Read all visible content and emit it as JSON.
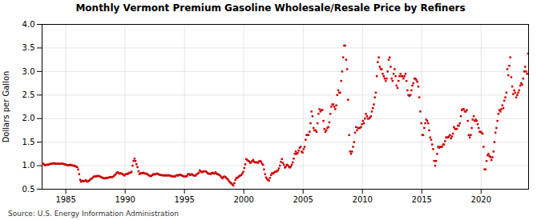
{
  "chart_data": {
    "type": "scatter",
    "title": "Monthly Vermont Premium Gasoline Wholesale/Resale Price by Refiners",
    "ylabel": "Dollars per Gallon",
    "annotations": [
      "Source: U.S. Energy Information Administration"
    ],
    "color": "#cc0000",
    "marker": "square",
    "grid": true,
    "xlim": [
      1983.0,
      2024.0
    ],
    "xticks": [
      1985,
      1990,
      1995,
      2000,
      2005,
      2010,
      2015,
      2020
    ],
    "ylim": [
      0.5,
      4.0
    ],
    "yticks": [
      0.5,
      {
        "value": 1.0,
        "label": "1.0"
      },
      1.5,
      {
        "value": 2.0,
        "label": "2.0"
      },
      2.5,
      {
        "value": 3.0,
        "label": "3.0"
      },
      3.5,
      {
        "value": 4.0,
        "label": "4.0"
      }
    ],
    "x": [
      1983.041667,
      1983.125,
      1983.208333,
      1983.291667,
      1983.375,
      1983.458333,
      1983.541667,
      1983.625,
      1983.708333,
      1983.791667,
      1983.875,
      1983.958333,
      1984.041667,
      1984.125,
      1984.208333,
      1984.291667,
      1984.375,
      1984.458333,
      1984.541667,
      1984.625,
      1984.708333,
      1984.791667,
      1984.875,
      1984.958333,
      1985.041667,
      1985.125,
      1985.208333,
      1985.291667,
      1985.375,
      1985.458333,
      1985.541667,
      1985.625,
      1985.708333,
      1985.791667,
      1985.875,
      1985.958333,
      1986.041667,
      1986.125,
      1986.208333,
      1986.291667,
      1986.375,
      1986.458333,
      1986.541667,
      1986.625,
      1986.708333,
      1986.791667,
      1986.875,
      1986.958333,
      1987.041667,
      1987.125,
      1987.208333,
      1987.291667,
      1987.375,
      1987.458333,
      1987.541667,
      1987.625,
      1987.708333,
      1987.791667,
      1987.875,
      1987.958333,
      1988.041667,
      1988.125,
      1988.208333,
      1988.291667,
      1988.375,
      1988.458333,
      1988.541667,
      1988.625,
      1988.708333,
      1988.791667,
      1988.875,
      1988.958333,
      1989.041667,
      1989.125,
      1989.208333,
      1989.291667,
      1989.375,
      1989.458333,
      1989.541667,
      1989.625,
      1989.708333,
      1989.791667,
      1989.875,
      1989.958333,
      1990.041667,
      1990.125,
      1990.208333,
      1990.291667,
      1990.375,
      1990.458333,
      1990.541667,
      1990.625,
      1990.708333,
      1990.791667,
      1990.875,
      1990.958333,
      1991.041667,
      1991.125,
      1991.208333,
      1991.291667,
      1991.375,
      1991.458333,
      1991.541667,
      1991.625,
      1991.708333,
      1991.791667,
      1991.875,
      1991.958333,
      1992.041667,
      1992.125,
      1992.208333,
      1992.291667,
      1992.375,
      1992.458333,
      1992.541667,
      1992.625,
      1992.708333,
      1992.791667,
      1992.875,
      1992.958333,
      1993.041667,
      1993.125,
      1993.208333,
      1993.291667,
      1993.375,
      1993.458333,
      1993.541667,
      1993.625,
      1993.708333,
      1993.791667,
      1993.875,
      1993.958333,
      1994.041667,
      1994.125,
      1994.208333,
      1994.291667,
      1994.375,
      1994.458333,
      1994.541667,
      1994.625,
      1994.708333,
      1994.791667,
      1994.875,
      1994.958333,
      1995.041667,
      1995.125,
      1995.208333,
      1995.291667,
      1995.375,
      1995.458333,
      1995.541667,
      1995.625,
      1995.708333,
      1995.791667,
      1995.875,
      1995.958333,
      1996.041667,
      1996.125,
      1996.208333,
      1996.291667,
      1996.375,
      1996.458333,
      1996.541667,
      1996.625,
      1996.708333,
      1996.791667,
      1996.875,
      1996.958333,
      1997.041667,
      1997.125,
      1997.208333,
      1997.291667,
      1997.375,
      1997.458333,
      1997.541667,
      1997.625,
      1997.708333,
      1997.791667,
      1997.875,
      1997.958333,
      1998.041667,
      1998.125,
      1998.208333,
      1998.291667,
      1998.375,
      1998.458333,
      1998.541667,
      1998.625,
      1998.708333,
      1998.791667,
      1998.875,
      1998.958333,
      1999.041667,
      1999.125,
      1999.208333,
      1999.291667,
      1999.375,
      1999.458333,
      1999.541667,
      1999.625,
      1999.708333,
      1999.791667,
      1999.875,
      1999.958333,
      2000.041667,
      2000.125,
      2000.208333,
      2000.291667,
      2000.375,
      2000.458333,
      2000.541667,
      2000.625,
      2000.708333,
      2000.791667,
      2000.875,
      2000.958333,
      2001.041667,
      2001.125,
      2001.208333,
      2001.291667,
      2001.375,
      2001.458333,
      2001.541667,
      2001.625,
      2001.708333,
      2001.791667,
      2001.875,
      2001.958333,
      2002.041667,
      2002.125,
      2002.208333,
      2002.291667,
      2002.375,
      2002.458333,
      2002.541667,
      2002.625,
      2002.708333,
      2002.791667,
      2002.875,
      2002.958333,
      2003.041667,
      2003.125,
      2003.208333,
      2003.291667,
      2003.375,
      2003.458333,
      2003.541667,
      2003.625,
      2003.708333,
      2003.791667,
      2003.875,
      2003.958333,
      2004.041667,
      2004.125,
      2004.208333,
      2004.291667,
      2004.375,
      2004.458333,
      2004.541667,
      2004.625,
      2004.708333,
      2004.791667,
      2004.875,
      2004.958333,
      2005.041667,
      2005.125,
      2005.208333,
      2005.291667,
      2005.375,
      2005.458333,
      2005.541667,
      2005.625,
      2005.708333,
      2005.791667,
      2005.875,
      2005.958333,
      2006.041667,
      2006.125,
      2006.208333,
      2006.291667,
      2006.375,
      2006.458333,
      2006.541667,
      2006.625,
      2006.708333,
      2006.791667,
      2006.875,
      2006.958333,
      2007.041667,
      2007.125,
      2007.208333,
      2007.291667,
      2007.375,
      2007.458333,
      2007.541667,
      2007.625,
      2007.708333,
      2007.791667,
      2007.875,
      2007.958333,
      2008.041667,
      2008.125,
      2008.208333,
      2008.291667,
      2008.375,
      2008.458333,
      2008.541667,
      2008.625,
      2008.708333,
      2008.791667,
      2008.875,
      2008.958333,
      2009.041667,
      2009.125,
      2009.208333,
      2009.291667,
      2009.375,
      2009.458333,
      2009.541667,
      2009.625,
      2009.708333,
      2009.791667,
      2009.875,
      2009.958333,
      2010.041667,
      2010.125,
      2010.208333,
      2010.291667,
      2010.375,
      2010.458333,
      2010.541667,
      2010.625,
      2010.708333,
      2010.791667,
      2010.875,
      2010.958333,
      2011.041667,
      2011.125,
      2011.208333,
      2011.291667,
      2011.375,
      2011.458333,
      2011.541667,
      2011.625,
      2011.708333,
      2011.791667,
      2011.875,
      2011.958333,
      2012.041667,
      2012.125,
      2012.208333,
      2012.291667,
      2012.375,
      2012.458333,
      2012.541667,
      2012.625,
      2012.708333,
      2012.791667,
      2012.875,
      2012.958333,
      2013.041667,
      2013.125,
      2013.208333,
      2013.291667,
      2013.375,
      2013.458333,
      2013.541667,
      2013.625,
      2013.708333,
      2013.791667,
      2013.875,
      2013.958333,
      2014.041667,
      2014.125,
      2014.208333,
      2014.291667,
      2014.375,
      2014.458333,
      2014.541667,
      2014.625,
      2014.708333,
      2014.791667,
      2014.875,
      2014.958333,
      2015.041667,
      2015.125,
      2015.208333,
      2015.291667,
      2015.375,
      2015.458333,
      2015.541667,
      2015.625,
      2015.708333,
      2015.791667,
      2015.875,
      2015.958333,
      2016.041667,
      2016.125,
      2016.208333,
      2016.291667,
      2016.375,
      2016.458333,
      2016.541667,
      2016.625,
      2016.708333,
      2016.791667,
      2016.875,
      2016.958333,
      2017.041667,
      2017.125,
      2017.208333,
      2017.291667,
      2017.375,
      2017.458333,
      2017.541667,
      2017.625,
      2017.708333,
      2017.791667,
      2017.875,
      2017.958333,
      2018.041667,
      2018.125,
      2018.208333,
      2018.291667,
      2018.375,
      2018.458333,
      2018.541667,
      2018.625,
      2018.708333,
      2018.791667,
      2018.875,
      2018.958333,
      2019.041667,
      2019.125,
      2019.208333,
      2019.291667,
      2019.375,
      2019.458333,
      2019.541667,
      2019.625,
      2019.708333,
      2019.791667,
      2019.875,
      2019.958333,
      2020.041667,
      2020.125,
      2020.208333,
      2020.291667,
      2020.375,
      2020.458333,
      2020.541667,
      2020.625,
      2020.708333,
      2020.791667,
      2020.875,
      2020.958333,
      2021.041667,
      2021.125,
      2021.208333,
      2021.291667,
      2021.375,
      2021.458333,
      2021.541667,
      2021.625,
      2021.708333,
      2021.791667,
      2021.875,
      2021.958333,
      2022.041667,
      2022.125,
      2022.208333,
      2022.291667,
      2022.375,
      2022.458333,
      2022.541667,
      2022.625,
      2022.708333,
      2022.791667,
      2022.875,
      2022.958333,
      2023.041667,
      2023.125,
      2023.208333,
      2023.291667,
      2023.375,
      2023.458333,
      2023.541667,
      2023.625,
      2023.708333,
      2023.791667,
      2023.875,
      2023.958333
    ],
    "values": [
      1.04,
      1.04,
      1.01,
      1.01,
      1.02,
      1.02,
      1.02,
      1.03,
      1.04,
      1.04,
      1.04,
      1.05,
      1.05,
      1.04,
      1.04,
      1.04,
      1.04,
      1.04,
      1.04,
      1.04,
      1.04,
      1.04,
      1.03,
      1.02,
      1.02,
      1.01,
      1.01,
      1.01,
      1.02,
      1.01,
      1.01,
      1.0,
      1.0,
      0.99,
      0.98,
      0.97,
      0.92,
      0.82,
      0.7,
      0.66,
      0.68,
      0.67,
      0.67,
      0.68,
      0.69,
      0.66,
      0.67,
      0.68,
      0.7,
      0.72,
      0.73,
      0.75,
      0.77,
      0.77,
      0.77,
      0.78,
      0.78,
      0.78,
      0.77,
      0.76,
      0.75,
      0.74,
      0.73,
      0.73,
      0.74,
      0.74,
      0.74,
      0.75,
      0.75,
      0.76,
      0.76,
      0.76,
      0.78,
      0.8,
      0.82,
      0.85,
      0.86,
      0.84,
      0.83,
      0.84,
      0.83,
      0.82,
      0.8,
      0.79,
      0.82,
      0.82,
      0.82,
      0.84,
      0.85,
      0.85,
      0.87,
      1.0,
      1.1,
      1.15,
      1.1,
      1.03,
      0.97,
      0.88,
      0.82,
      0.84,
      0.84,
      0.84,
      0.85,
      0.84,
      0.83,
      0.83,
      0.82,
      0.8,
      0.79,
      0.78,
      0.78,
      0.8,
      0.82,
      0.81,
      0.82,
      0.83,
      0.83,
      0.82,
      0.81,
      0.8,
      0.8,
      0.8,
      0.79,
      0.79,
      0.8,
      0.79,
      0.79,
      0.8,
      0.79,
      0.79,
      0.78,
      0.77,
      0.77,
      0.77,
      0.77,
      0.79,
      0.8,
      0.79,
      0.8,
      0.81,
      0.8,
      0.79,
      0.78,
      0.77,
      0.77,
      0.77,
      0.78,
      0.82,
      0.82,
      0.8,
      0.81,
      0.82,
      0.8,
      0.79,
      0.79,
      0.79,
      0.82,
      0.83,
      0.85,
      0.9,
      0.88,
      0.86,
      0.87,
      0.88,
      0.88,
      0.88,
      0.86,
      0.84,
      0.83,
      0.83,
      0.82,
      0.84,
      0.85,
      0.83,
      0.84,
      0.86,
      0.83,
      0.82,
      0.81,
      0.8,
      0.78,
      0.75,
      0.73,
      0.76,
      0.77,
      0.76,
      0.73,
      0.72,
      0.69,
      0.66,
      0.64,
      0.62,
      0.6,
      0.58,
      0.63,
      0.7,
      0.74,
      0.74,
      0.76,
      0.78,
      0.79,
      0.8,
      0.83,
      0.87,
      0.95,
      1.03,
      1.14,
      1.12,
      1.1,
      1.09,
      1.06,
      1.07,
      1.1,
      1.12,
      1.08,
      1.07,
      1.07,
      1.07,
      1.06,
      1.09,
      1.1,
      1.08,
      1.04,
      1.02,
      0.92,
      0.82,
      0.75,
      0.72,
      0.7,
      0.68,
      0.74,
      0.8,
      0.84,
      0.83,
      0.85,
      0.87,
      0.87,
      0.88,
      0.9,
      0.94,
      1.0,
      1.08,
      1.14,
      1.06,
      1.02,
      0.96,
      0.98,
      1.02,
      1.01,
      0.98,
      0.96,
      0.98,
      1.02,
      1.07,
      1.15,
      1.25,
      1.3,
      1.25,
      1.27,
      1.32,
      1.38,
      1.4,
      1.3,
      1.28,
      1.35,
      1.4,
      1.55,
      1.65,
      1.65,
      1.65,
      1.72,
      1.9,
      2.15,
      2.05,
      1.8,
      1.75,
      1.75,
      1.72,
      1.9,
      2.1,
      2.2,
      2.15,
      2.18,
      2.18,
      1.95,
      1.78,
      1.72,
      1.75,
      1.8,
      1.82,
      1.92,
      2.1,
      2.25,
      2.3,
      2.3,
      2.25,
      2.2,
      2.28,
      2.5,
      2.6,
      2.55,
      2.55,
      2.8,
      3.0,
      3.3,
      3.55,
      3.55,
      3.25,
      3.05,
      2.4,
      1.65,
      1.3,
      1.25,
      1.3,
      1.4,
      1.5,
      1.7,
      1.82,
      1.75,
      1.8,
      1.8,
      1.8,
      1.82,
      1.88,
      1.95,
      1.9,
      2.0,
      2.1,
      2.05,
      2.0,
      2.0,
      2.02,
      2.05,
      2.15,
      2.22,
      2.3,
      2.45,
      2.55,
      2.9,
      3.2,
      3.3,
      3.1,
      3.05,
      3.05,
      2.95,
      2.9,
      2.85,
      2.8,
      2.85,
      3.0,
      3.25,
      3.3,
      3.1,
      2.85,
      2.8,
      2.95,
      3.05,
      2.9,
      2.7,
      2.65,
      2.8,
      2.9,
      2.95,
      2.9,
      2.9,
      2.85,
      2.9,
      2.95,
      2.8,
      2.6,
      2.5,
      2.48,
      2.5,
      2.6,
      2.7,
      2.75,
      2.85,
      2.85,
      2.82,
      2.78,
      2.68,
      2.45,
      2.15,
      1.9,
      1.65,
      1.65,
      1.8,
      1.9,
      1.98,
      1.95,
      1.9,
      1.75,
      1.6,
      1.55,
      1.45,
      1.35,
      1.1,
      1.0,
      1.1,
      1.25,
      1.4,
      1.38,
      1.4,
      1.4,
      1.4,
      1.45,
      1.45,
      1.52,
      1.6,
      1.6,
      1.6,
      1.62,
      1.65,
      1.58,
      1.62,
      1.68,
      1.82,
      1.78,
      1.78,
      1.78,
      1.85,
      1.85,
      1.9,
      2.05,
      2.18,
      2.2,
      2.2,
      2.15,
      2.15,
      2.18,
      1.95,
      1.65,
      1.6,
      1.65,
      1.8,
      1.98,
      2.05,
      1.95,
      1.98,
      1.95,
      1.88,
      1.8,
      1.72,
      1.72,
      1.7,
      1.68,
      1.4,
      0.92,
      0.92,
      1.1,
      1.22,
      1.25,
      1.2,
      1.18,
      1.12,
      1.18,
      1.3,
      1.5,
      1.7,
      1.8,
      1.95,
      2.1,
      2.18,
      2.15,
      2.2,
      2.28,
      2.22,
      2.38,
      2.45,
      2.55,
      3.05,
      2.92,
      3.12,
      3.3,
      2.88,
      2.68,
      2.52,
      2.6,
      2.55,
      2.45,
      2.5,
      2.55,
      2.6,
      2.7,
      2.75,
      2.72,
      2.85,
      3.0,
      3.1,
      3.0,
      2.95,
      3.38
    ]
  }
}
